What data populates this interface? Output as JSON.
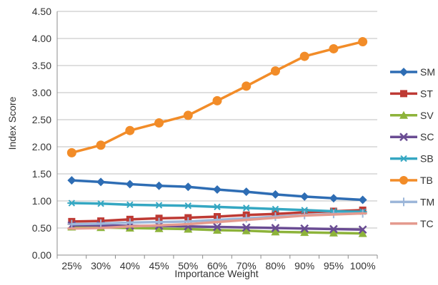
{
  "chart_data": {
    "type": "line",
    "title": "",
    "xlabel": "Importance Weight",
    "ylabel": "Index Score",
    "ylim": [
      0,
      4.5
    ],
    "yticks": [
      "0.00",
      "0.50",
      "1.00",
      "1.50",
      "2.00",
      "2.50",
      "3.00",
      "3.50",
      "4.00",
      "4.50"
    ],
    "grid": "horizontal",
    "legend_position": "right",
    "categories": [
      "25%",
      "30%",
      "40%",
      "45%",
      "50%",
      "60%",
      "70%",
      "80%",
      "90%",
      "95%",
      "100%"
    ],
    "series": [
      {
        "name": "SM",
        "color": "#2E6DB4",
        "marker": "diamond",
        "values": [
          1.38,
          1.35,
          1.31,
          1.28,
          1.26,
          1.21,
          1.17,
          1.12,
          1.08,
          1.05,
          1.02
        ]
      },
      {
        "name": "ST",
        "color": "#BE3A34",
        "marker": "square",
        "values": [
          0.62,
          0.63,
          0.66,
          0.68,
          0.69,
          0.71,
          0.74,
          0.76,
          0.79,
          0.81,
          0.83
        ]
      },
      {
        "name": "SV",
        "color": "#8DB33A",
        "marker": "triangle",
        "values": [
          0.52,
          0.51,
          0.5,
          0.49,
          0.48,
          0.46,
          0.45,
          0.43,
          0.42,
          0.41,
          0.4
        ]
      },
      {
        "name": "SC",
        "color": "#6A4C93",
        "marker": "x",
        "values": [
          0.55,
          0.55,
          0.54,
          0.54,
          0.53,
          0.52,
          0.51,
          0.5,
          0.49,
          0.48,
          0.47
        ]
      },
      {
        "name": "SB",
        "color": "#35A7C2",
        "marker": "asterisk",
        "values": [
          0.96,
          0.95,
          0.93,
          0.92,
          0.91,
          0.89,
          0.87,
          0.85,
          0.83,
          0.81,
          0.8
        ]
      },
      {
        "name": "TB",
        "color": "#F28C28",
        "marker": "circle",
        "values": [
          1.89,
          2.03,
          2.3,
          2.44,
          2.58,
          2.85,
          3.12,
          3.4,
          3.67,
          3.81,
          3.94
        ]
      },
      {
        "name": "TM",
        "color": "#9CB6D9",
        "marker": "plus",
        "values": [
          0.57,
          0.58,
          0.6,
          0.61,
          0.62,
          0.65,
          0.68,
          0.71,
          0.74,
          0.76,
          0.77
        ]
      },
      {
        "name": "TC",
        "color": "#E49A8E",
        "marker": "dash",
        "values": [
          0.49,
          0.5,
          0.53,
          0.55,
          0.57,
          0.61,
          0.65,
          0.69,
          0.73,
          0.75,
          0.77
        ]
      }
    ]
  }
}
